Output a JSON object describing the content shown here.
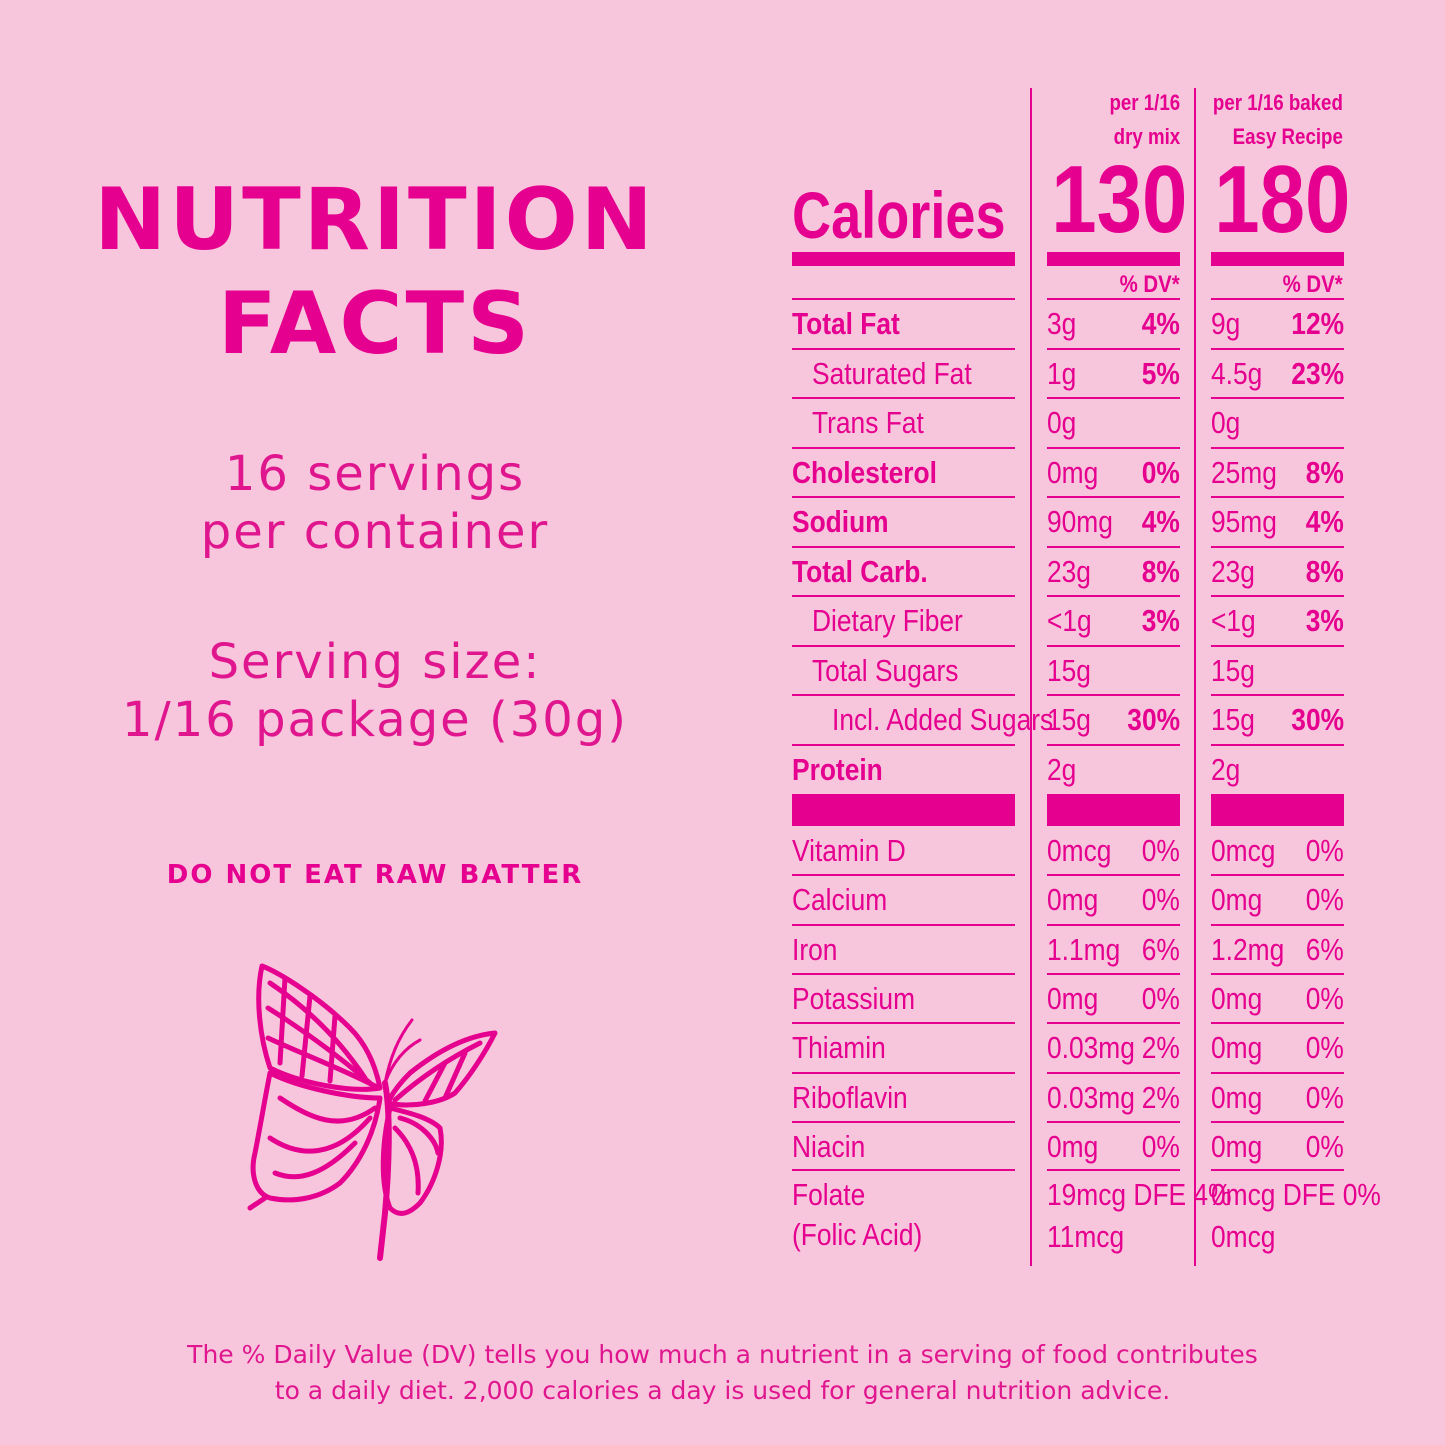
{
  "left": {
    "title_line1": "NUTRITION",
    "title_line2": "FACTS",
    "servings_line1": "16 servings",
    "servings_line2": "per container",
    "serving_size_line1": "Serving size:",
    "serving_size_line2": "1/16 package (30g)",
    "warning": "DO NOT EAT RAW BATTER",
    "icon": "butterfly-icon"
  },
  "columns": {
    "dry": {
      "header1": "per 1/16",
      "header2": "dry mix",
      "calories": "130",
      "dv": "% DV*"
    },
    "baked": {
      "header1": "per 1/16 baked",
      "header2": "Easy Recipe",
      "calories": "180",
      "dv": "% DV*"
    }
  },
  "calories_label": "Calories",
  "main_rows": [
    {
      "label": "Total Fat",
      "bold": true,
      "indent": 0,
      "dry_amt": "3g",
      "dry_pct": "4%",
      "baked_amt": "9g",
      "baked_pct": "12%"
    },
    {
      "label": "Saturated Fat",
      "bold": false,
      "indent": 1,
      "dry_amt": "1g",
      "dry_pct": "5%",
      "baked_amt": "4.5g",
      "baked_pct": "23%"
    },
    {
      "label": "Trans Fat",
      "bold": false,
      "indent": 1,
      "dry_amt": "0g",
      "dry_pct": "",
      "baked_amt": "0g",
      "baked_pct": ""
    },
    {
      "label": "Cholesterol",
      "bold": true,
      "indent": 0,
      "dry_amt": "0mg",
      "dry_pct": "0%",
      "baked_amt": "25mg",
      "baked_pct": "8%"
    },
    {
      "label": "Sodium",
      "bold": true,
      "indent": 0,
      "dry_amt": "90mg",
      "dry_pct": "4%",
      "baked_amt": "95mg",
      "baked_pct": "4%"
    },
    {
      "label": "Total Carb.",
      "bold": true,
      "indent": 0,
      "dry_amt": "23g",
      "dry_pct": "8%",
      "baked_amt": "23g",
      "baked_pct": "8%"
    },
    {
      "label": "Dietary Fiber",
      "bold": false,
      "indent": 1,
      "dry_amt": "<1g",
      "dry_pct": "3%",
      "baked_amt": "<1g",
      "baked_pct": "3%"
    },
    {
      "label": "Total Sugars",
      "bold": false,
      "indent": 1,
      "dry_amt": "15g",
      "dry_pct": "",
      "baked_amt": "15g",
      "baked_pct": ""
    },
    {
      "label": "Incl. Added Sugars",
      "bold": false,
      "indent": 2,
      "dry_amt": "15g",
      "dry_pct": "30%",
      "baked_amt": "15g",
      "baked_pct": "30%"
    },
    {
      "label": "Protein",
      "bold": true,
      "indent": 0,
      "dry_amt": "2g",
      "dry_pct": "",
      "baked_amt": "2g",
      "baked_pct": ""
    }
  ],
  "vitamin_rows": [
    {
      "label": "Vitamin D",
      "dry_amt": "0mcg",
      "dry_pct": "0%",
      "baked_amt": "0mcg",
      "baked_pct": "0%"
    },
    {
      "label": "Calcium",
      "dry_amt": "0mg",
      "dry_pct": "0%",
      "baked_amt": "0mg",
      "baked_pct": "0%"
    },
    {
      "label": "Iron",
      "dry_amt": "1.1mg",
      "dry_pct": "6%",
      "baked_amt": "1.2mg",
      "baked_pct": "6%"
    },
    {
      "label": "Potassium",
      "dry_amt": "0mg",
      "dry_pct": "0%",
      "baked_amt": "0mg",
      "baked_pct": "0%"
    },
    {
      "label": "Thiamin",
      "dry_amt": "0.03mg",
      "dry_pct": "2%",
      "baked_amt": "0mg",
      "baked_pct": "0%"
    },
    {
      "label": "Riboflavin",
      "dry_amt": "0.03mg",
      "dry_pct": "2%",
      "baked_amt": "0mg",
      "baked_pct": "0%"
    },
    {
      "label": "Niacin",
      "dry_amt": "0mg",
      "dry_pct": "0%",
      "baked_amt": "0mg",
      "baked_pct": "0%"
    }
  ],
  "folate": {
    "label1": "Folate",
    "label2": "(Folic Acid)",
    "dry_line1": "19mcg DFE 4%",
    "dry_line2": "11mcg",
    "baked_line1": "0mcg DFE 0%",
    "baked_line2": "0mcg"
  },
  "footer_line1": "The % Daily Value (DV) tells you how much a nutrient in a serving of food contributes",
  "footer_line2": "to a daily diet. 2,000 calories a day is used for general nutrition advice.",
  "colors": {
    "background": "#f8c6dc",
    "accent": "#e5008f"
  }
}
